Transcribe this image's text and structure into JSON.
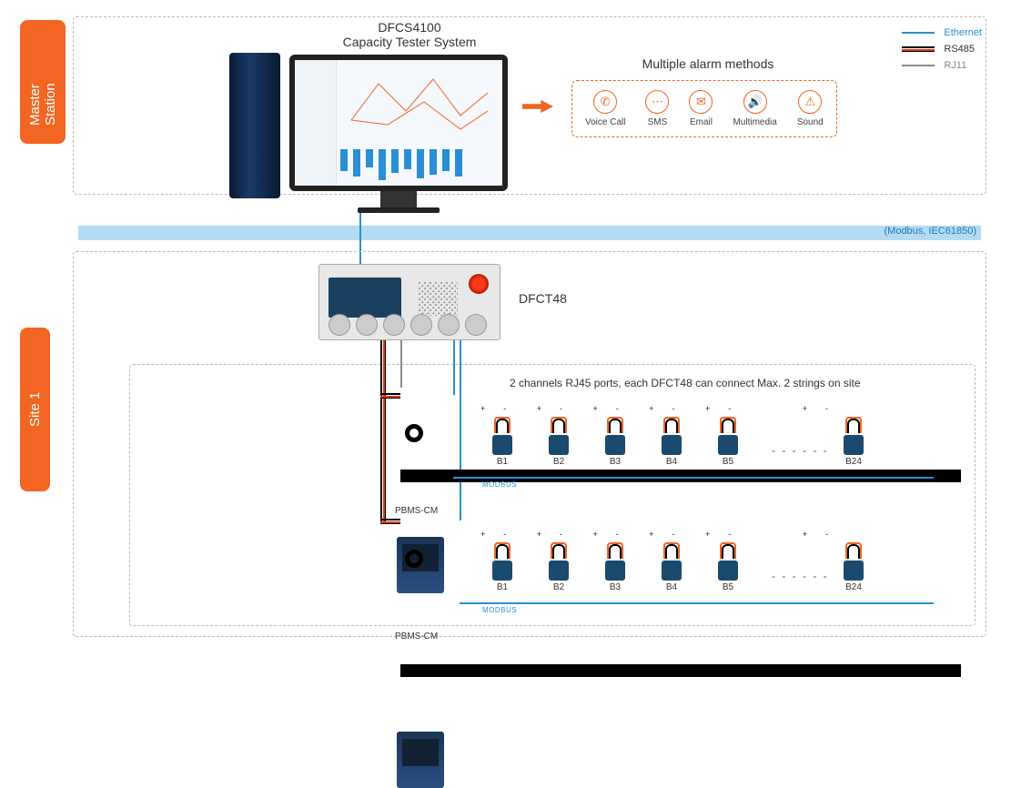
{
  "colors": {
    "brand": "#f26522",
    "ethernet": "#2a8fd4",
    "rs485_outer": "#000000",
    "rs485_inner": "#e03a1a",
    "rj11": "#8a8a8a",
    "protocol_bar": "#b3dcf4",
    "box_border": "#bbbbbb"
  },
  "master": {
    "label": "Master Station",
    "title_line1": "DFCS4100",
    "title_line2": "Capacity Tester System",
    "alarm_title": "Multiple alarm methods",
    "alarm_items": [
      {
        "icon": "phone-icon",
        "glyph": "✆",
        "label": "Voice Call"
      },
      {
        "icon": "sms-icon",
        "glyph": "⋯",
        "label": "SMS"
      },
      {
        "icon": "email-icon",
        "glyph": "✉",
        "label": "Email"
      },
      {
        "icon": "multimedia-icon",
        "glyph": "🔊",
        "label": "Multimedia"
      },
      {
        "icon": "sound-icon",
        "glyph": "⚠",
        "label": "Sound"
      }
    ]
  },
  "legend": [
    {
      "name": "legend-ethernet",
      "label": "Ethernet",
      "color": "#2a8fd4",
      "style": "solid"
    },
    {
      "name": "legend-rs485",
      "label": "RS485",
      "color": "#000000",
      "style": "double-red"
    },
    {
      "name": "legend-rj11",
      "label": "RJ11",
      "color": "#8a8a8a",
      "style": "solid"
    }
  ],
  "protocol_bar_text": "(Modbus, IEC61850)",
  "site": {
    "label": "Site 1",
    "device": "DFCT48",
    "note": "2 channels RJ45 ports, each DFCT48 can connect Max. 2 strings on site",
    "cm_label": "PBMS-CM",
    "modbus_label": "MODBUS",
    "strings": [
      {
        "batteries": [
          "B1",
          "B2",
          "B3",
          "B4",
          "B5",
          "B24"
        ]
      },
      {
        "batteries": [
          "B1",
          "B2",
          "B3",
          "B4",
          "B5",
          "B24"
        ]
      }
    ],
    "polarity_marks": "+   -"
  }
}
